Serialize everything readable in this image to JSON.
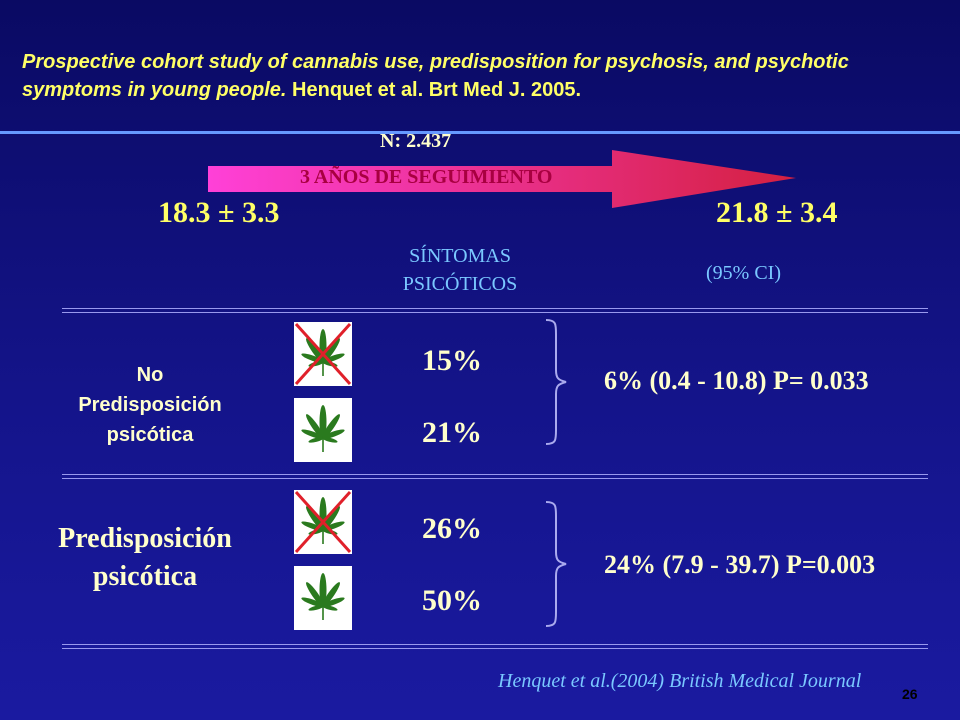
{
  "header": {
    "title_italic": "Prospective cohort study of cannabis use, predisposition for psychosis, and psychotic symptoms in young people.",
    "title_ref": " Henquet et al. Brt Med J. 2005."
  },
  "study": {
    "n": "N: 2.437",
    "followup": "3 AÑOS DE SEGUIMIENTO",
    "start_age": "18.3 ± 3.3",
    "end_age": "21.8 ± 3.4"
  },
  "columns": {
    "symptoms_line1": "SÍNTOMAS",
    "symptoms_line2": "PSICÓTICOS",
    "ci": "(95% CI)"
  },
  "groups": [
    {
      "label_line1": "No",
      "label_line2": "Predisposición",
      "label_line3": "psicótica",
      "no_cannabis_pct": "15%",
      "cannabis_pct": "21%",
      "result": "6% (0.4 - 10.8) P= 0.033"
    },
    {
      "label_line1": "Predisposición",
      "label_line2": "psicótica",
      "no_cannabis_pct": "26%",
      "cannabis_pct": "50%",
      "result": "24% (7.9 - 39.7) P=0.003"
    }
  ],
  "citation": "Henquet et al.(2004) British Medical Journal",
  "page_number": "26",
  "colors": {
    "background": "#14148a",
    "header_text": "#ffff66",
    "body_text": "#ffffcc",
    "accent_blue": "#7ac8ff",
    "arrow_start": "#ff3fd0",
    "arrow_end": "#d62040",
    "cross_red": "#e0202a"
  },
  "icons": {
    "leaf": "cannabis-leaf-icon",
    "crossed_leaf": "crossed-cannabis-leaf-icon"
  }
}
